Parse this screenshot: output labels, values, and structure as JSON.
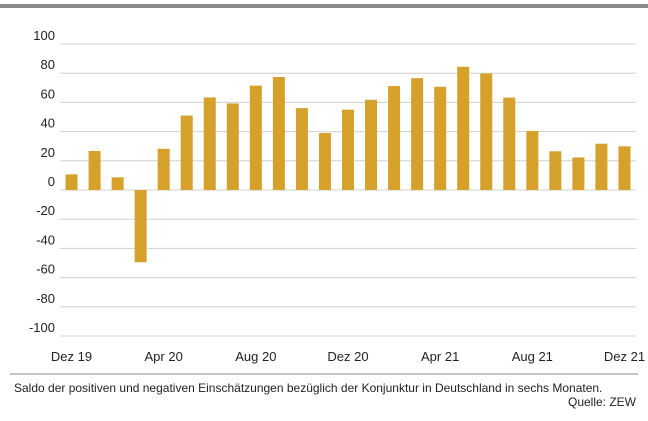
{
  "chart_data": {
    "type": "bar",
    "categories": [
      "Dez 19",
      null,
      null,
      null,
      "Apr 20",
      null,
      null,
      null,
      "Aug 20",
      null,
      null,
      null,
      "Dez 20",
      null,
      null,
      null,
      "Apr 21",
      null,
      null,
      null,
      "Aug 21",
      null,
      null,
      null,
      "Dez 21"
    ],
    "values": [
      10.7,
      26.7,
      8.7,
      -49.5,
      28.2,
      51.0,
      63.4,
      59.3,
      71.5,
      77.4,
      56.1,
      39.0,
      55.0,
      61.8,
      71.2,
      76.6,
      70.7,
      84.4,
      79.8,
      63.3,
      40.4,
      26.5,
      22.3,
      31.7,
      29.9
    ],
    "color": "#d6a12b",
    "ylim": [
      -100,
      100
    ],
    "yticks": [
      -100,
      -80,
      -60,
      -40,
      -20,
      0,
      20,
      40,
      60,
      80,
      100
    ],
    "grid": true,
    "note": "Saldo der positiven und negativen Einschätzungen bezüglich der Konjunktur in Deutschland in sechs Monaten.",
    "source": "Quelle: ZEW"
  }
}
